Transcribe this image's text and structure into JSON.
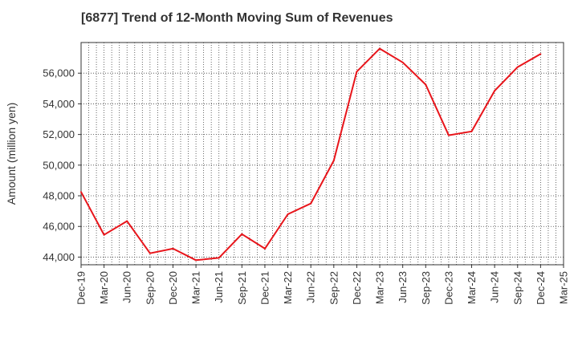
{
  "chart_data": {
    "type": "line",
    "title": "[6877]  Trend of 12-Month Moving Sum of Revenues",
    "xlabel": "",
    "ylabel": "Amount (million yen)",
    "x": [
      "Dec-19",
      "Mar-20",
      "Jun-20",
      "Sep-20",
      "Dec-20",
      "Mar-21",
      "Jun-21",
      "Sep-21",
      "Dec-21",
      "Mar-22",
      "Jun-22",
      "Sep-22",
      "Dec-22",
      "Mar-23",
      "Jun-23",
      "Sep-23",
      "Dec-23",
      "Mar-24",
      "Jun-24",
      "Sep-24",
      "Dec-24",
      "Mar-25"
    ],
    "series": [
      {
        "name": "",
        "color": "#e8151b",
        "values": [
          48250,
          45450,
          46350,
          44250,
          44550,
          43800,
          43950,
          45500,
          44550,
          46800,
          47500,
          50300,
          56100,
          57600,
          56700,
          55250,
          51950,
          52200,
          54850,
          56400,
          57250,
          null
        ]
      }
    ],
    "yticks": [
      44000,
      46000,
      48000,
      50000,
      52000,
      54000,
      56000
    ],
    "ytick_labels": [
      "44,000",
      "46,000",
      "48,000",
      "50,000",
      "52,000",
      "54,000",
      "56,000"
    ],
    "ylim": [
      43500,
      58000
    ],
    "grid": true,
    "legend": "none"
  }
}
